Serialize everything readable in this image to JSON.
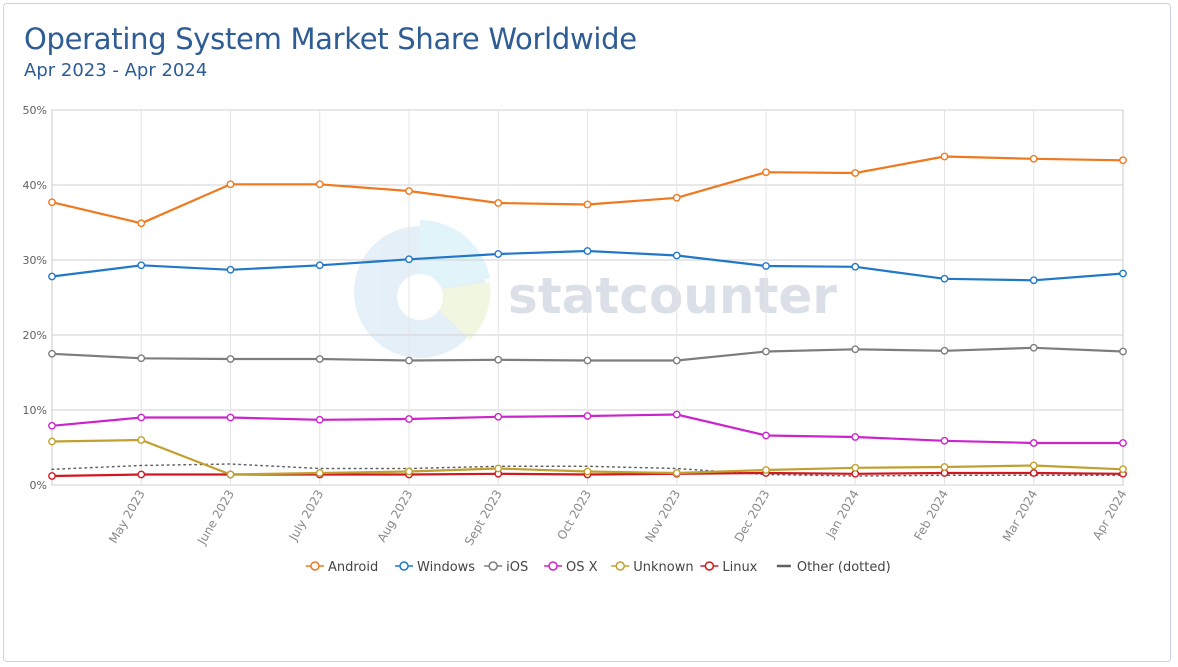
{
  "title": "Operating System Market Share Worldwide",
  "subtitle": "Apr 2023 - Apr 2024",
  "watermark": "statcounter",
  "chart_data": {
    "type": "line",
    "title": "Operating System Market Share Worldwide",
    "subtitle": "Apr 2023 - Apr 2024",
    "x": [
      "",
      "May 2023",
      "June 2023",
      "July 2023",
      "Aug 2023",
      "Sept 2023",
      "Oct 2023",
      "Nov 2023",
      "Dec 2023",
      "Jan 2024",
      "Feb 2024",
      "Mar 2024",
      "Apr 2024"
    ],
    "ylim": [
      0,
      50
    ],
    "yticks": [
      0,
      10,
      20,
      30,
      40,
      50
    ],
    "ytick_labels": [
      "0%",
      "10%",
      "20%",
      "30%",
      "40%",
      "50%"
    ],
    "grid": true,
    "legend_position": "bottom",
    "series": [
      {
        "name": "Android",
        "color": "#f0781e",
        "style": "solid-markers",
        "values": [
          37.7,
          34.9,
          40.1,
          40.1,
          39.2,
          37.6,
          37.4,
          38.3,
          41.7,
          41.6,
          43.8,
          43.5,
          43.3
        ]
      },
      {
        "name": "Windows",
        "color": "#2177c8",
        "style": "solid-markers",
        "values": [
          27.8,
          29.3,
          28.7,
          29.3,
          30.1,
          30.8,
          31.2,
          30.6,
          29.2,
          29.1,
          27.5,
          27.3,
          28.2
        ]
      },
      {
        "name": "iOS",
        "color": "#7d7d7d",
        "style": "solid-markers",
        "values": [
          17.5,
          16.9,
          16.8,
          16.8,
          16.6,
          16.7,
          16.6,
          16.6,
          17.8,
          18.1,
          17.9,
          18.3,
          17.8
        ]
      },
      {
        "name": "OS X",
        "color": "#cc24cc",
        "style": "solid-markers",
        "values": [
          7.9,
          9.0,
          9.0,
          8.7,
          8.8,
          9.1,
          9.2,
          9.4,
          6.6,
          6.4,
          5.9,
          5.6,
          5.6
        ]
      },
      {
        "name": "Unknown",
        "color": "#c0a030",
        "style": "solid-markers",
        "values": [
          5.8,
          6.0,
          1.4,
          1.6,
          1.8,
          2.2,
          1.8,
          1.6,
          2.0,
          2.3,
          2.4,
          2.6,
          2.1
        ]
      },
      {
        "name": "Linux",
        "color": "#d01820",
        "style": "solid-markers",
        "values": [
          1.2,
          1.4,
          1.4,
          1.4,
          1.4,
          1.5,
          1.4,
          1.5,
          1.6,
          1.5,
          1.6,
          1.6,
          1.5
        ]
      },
      {
        "name": "Other (dotted)",
        "color": "#606060",
        "style": "dotted",
        "values": [
          2.1,
          2.6,
          2.8,
          2.2,
          2.2,
          2.5,
          2.5,
          2.2,
          1.4,
          1.2,
          1.3,
          1.3,
          1.3
        ]
      }
    ]
  }
}
